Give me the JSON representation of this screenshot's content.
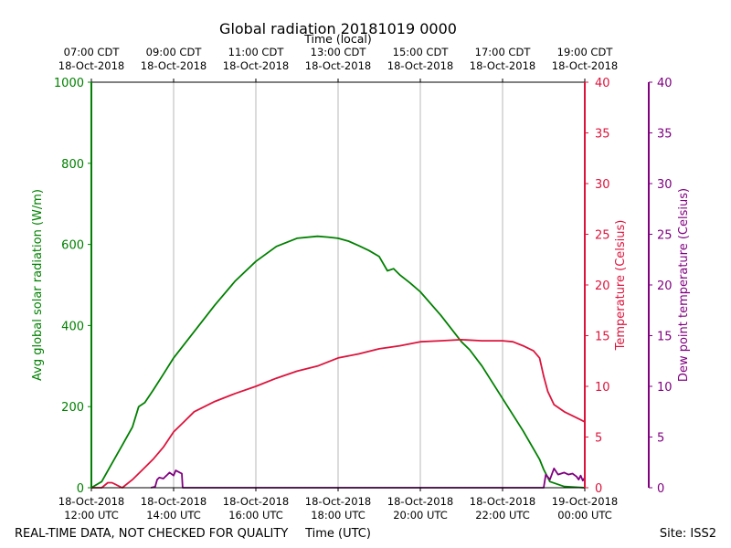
{
  "chart_data": {
    "type": "line",
    "title": "Global radiation 20181019 0000",
    "top_axis_label": "Time (local)",
    "xlabel": "Time (UTC)",
    "footer_left": "REAL-TIME DATA, NOT CHECKED FOR QUALITY",
    "footer_right": "Site: ISS2",
    "x_range_hours_utc": [
      12,
      24
    ],
    "x_ticks_utc": [
      {
        "h": 12,
        "date": "18-Oct-2018",
        "time": "12:00 UTC"
      },
      {
        "h": 14,
        "date": "18-Oct-2018",
        "time": "14:00 UTC"
      },
      {
        "h": 16,
        "date": "18-Oct-2018",
        "time": "16:00 UTC"
      },
      {
        "h": 18,
        "date": "18-Oct-2018",
        "time": "18:00 UTC"
      },
      {
        "h": 20,
        "date": "18-Oct-2018",
        "time": "20:00 UTC"
      },
      {
        "h": 22,
        "date": "18-Oct-2018",
        "time": "22:00 UTC"
      },
      {
        "h": 24,
        "date": "19-Oct-2018",
        "time": "00:00 UTC"
      }
    ],
    "x_ticks_local": [
      {
        "h": 12,
        "time": "07:00 CDT",
        "date": "18-Oct-2018"
      },
      {
        "h": 14,
        "time": "09:00 CDT",
        "date": "18-Oct-2018"
      },
      {
        "h": 16,
        "time": "11:00 CDT",
        "date": "18-Oct-2018"
      },
      {
        "h": 18,
        "time": "13:00 CDT",
        "date": "18-Oct-2018"
      },
      {
        "h": 20,
        "time": "15:00 CDT",
        "date": "18-Oct-2018"
      },
      {
        "h": 22,
        "time": "17:00 CDT",
        "date": "18-Oct-2018"
      },
      {
        "h": 24,
        "time": "19:00 CDT",
        "date": "18-Oct-2018"
      }
    ],
    "grid_x": true,
    "axes": {
      "radiation": {
        "label": "Avg global solar radiation (W/m)",
        "range": [
          0,
          1000
        ],
        "ticks": [
          0,
          200,
          400,
          600,
          800,
          1000
        ],
        "color": "#008000"
      },
      "temperature": {
        "label": "Temperature (Celsius)",
        "range": [
          0,
          40
        ],
        "ticks": [
          0,
          5,
          10,
          15,
          20,
          25,
          30,
          35,
          40
        ],
        "color": "#dc143c"
      },
      "dewpoint": {
        "label": "Dew point temperature (Celsius)",
        "range": [
          0,
          40
        ],
        "ticks": [
          0,
          5,
          10,
          15,
          20,
          25,
          30,
          35,
          40
        ],
        "color": "#800080"
      }
    },
    "series": [
      {
        "name": "Avg global solar radiation",
        "axis": "radiation",
        "color": "#008000",
        "x": [
          12.0,
          12.25,
          12.5,
          12.75,
          13.0,
          13.15,
          13.3,
          13.5,
          13.75,
          14.0,
          14.5,
          15.0,
          15.5,
          16.0,
          16.5,
          17.0,
          17.5,
          17.75,
          18.0,
          18.25,
          18.5,
          18.75,
          19.0,
          19.2,
          19.35,
          19.5,
          19.75,
          20.0,
          20.5,
          21.0,
          21.2,
          21.5,
          22.0,
          22.5,
          22.9,
          23.0,
          23.15,
          23.5,
          24.0
        ],
        "y": [
          0,
          15,
          60,
          105,
          150,
          200,
          210,
          240,
          280,
          320,
          385,
          450,
          510,
          558,
          595,
          615,
          620,
          618,
          615,
          608,
          597,
          585,
          570,
          535,
          540,
          525,
          505,
          483,
          425,
          360,
          340,
          300,
          220,
          140,
          70,
          45,
          15,
          3,
          0
        ]
      },
      {
        "name": "Temperature",
        "axis": "temperature",
        "color": "#dc143c",
        "x": [
          12.0,
          12.25,
          12.4,
          12.5,
          12.75,
          13.0,
          13.25,
          13.5,
          13.75,
          14.0,
          14.25,
          14.5,
          15.0,
          15.5,
          16.0,
          16.5,
          17.0,
          17.5,
          18.0,
          18.5,
          19.0,
          19.5,
          20.0,
          20.5,
          21.0,
          21.5,
          22.0,
          22.25,
          22.5,
          22.75,
          22.9,
          23.0,
          23.1,
          23.25,
          23.5,
          24.0
        ],
        "y": [
          0,
          0,
          0.5,
          0.5,
          0,
          0.8,
          1.8,
          2.8,
          4.0,
          5.5,
          6.5,
          7.5,
          8.5,
          9.3,
          10.0,
          10.8,
          11.5,
          12.0,
          12.8,
          13.2,
          13.7,
          14.0,
          14.4,
          14.5,
          14.6,
          14.5,
          14.5,
          14.4,
          14.0,
          13.5,
          12.8,
          11.0,
          9.5,
          8.2,
          7.5,
          6.5
        ]
      },
      {
        "name": "Dew point temperature",
        "axis": "dewpoint",
        "color": "#800080",
        "x": [
          13.45,
          13.55,
          13.6,
          13.65,
          13.75,
          13.8,
          13.85,
          13.9,
          14.0,
          14.05,
          14.1,
          14.15,
          14.2,
          14.22,
          23.0,
          23.05,
          23.15,
          23.25,
          23.35,
          23.5,
          23.6,
          23.7,
          23.8,
          23.85,
          23.9,
          23.95,
          24.0
        ],
        "y": [
          0,
          0.1,
          0.8,
          1.0,
          0.9,
          1.1,
          1.3,
          1.5,
          1.2,
          1.7,
          1.6,
          1.5,
          1.4,
          0,
          0,
          1.3,
          0.8,
          1.9,
          1.3,
          1.5,
          1.3,
          1.4,
          1.1,
          0.8,
          1.2,
          0.7,
          1.0
        ]
      }
    ]
  }
}
